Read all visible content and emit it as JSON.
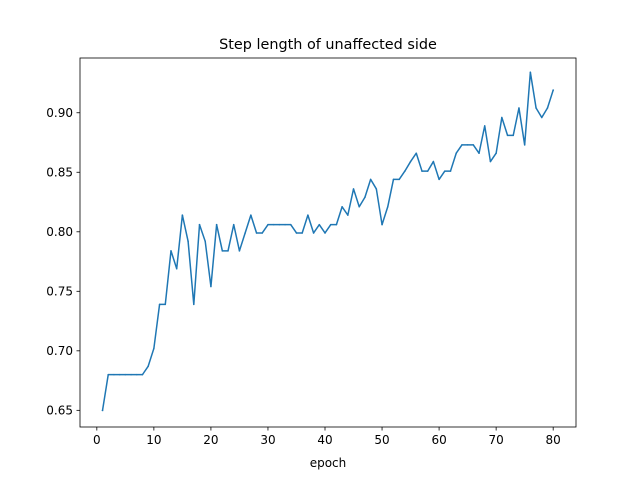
{
  "chart_data": {
    "type": "line",
    "title": "Step length of unaffected side",
    "xlabel": "epoch",
    "ylabel": "",
    "xlim": [
      -2.95,
      84.0
    ],
    "ylim": [
      0.636,
      0.946
    ],
    "grid": false,
    "legend": "none",
    "x_ticks": [
      0,
      10,
      20,
      30,
      40,
      50,
      60,
      70,
      80
    ],
    "x_tick_labels": [
      "0",
      "10",
      "20",
      "30",
      "40",
      "50",
      "60",
      "70",
      "80"
    ],
    "y_ticks": [
      0.65,
      0.7,
      0.75,
      0.8,
      0.85,
      0.9
    ],
    "y_tick_labels": [
      "0.65",
      "0.70",
      "0.75",
      "0.80",
      "0.85",
      "0.90"
    ],
    "series": [
      {
        "name": "",
        "color": "#1f77b4",
        "x": [
          1,
          2,
          3,
          4,
          5,
          6,
          7,
          8,
          9,
          10,
          11,
          12,
          13,
          14,
          15,
          16,
          17,
          18,
          19,
          20,
          21,
          22,
          23,
          24,
          25,
          26,
          27,
          28,
          29,
          30,
          31,
          32,
          33,
          34,
          35,
          36,
          37,
          38,
          39,
          40,
          41,
          42,
          43,
          44,
          45,
          46,
          47,
          48,
          49,
          50,
          51,
          52,
          53,
          54,
          55,
          56,
          57,
          58,
          59,
          60,
          61,
          62,
          63,
          64,
          65,
          66,
          67,
          68,
          69,
          70,
          71,
          72,
          73,
          74,
          75,
          76,
          77,
          78,
          79,
          80
        ],
        "values": [
          0.65,
          0.68,
          0.68,
          0.68,
          0.68,
          0.68,
          0.68,
          0.68,
          0.687,
          0.702,
          0.739,
          0.739,
          0.784,
          0.769,
          0.814,
          0.792,
          0.739,
          0.806,
          0.792,
          0.754,
          0.806,
          0.784,
          0.784,
          0.806,
          0.784,
          0.799,
          0.814,
          0.799,
          0.799,
          0.806,
          0.806,
          0.806,
          0.806,
          0.806,
          0.799,
          0.799,
          0.814,
          0.799,
          0.806,
          0.799,
          0.806,
          0.806,
          0.821,
          0.814,
          0.836,
          0.821,
          0.829,
          0.844,
          0.836,
          0.806,
          0.821,
          0.844,
          0.844,
          0.851,
          0.859,
          0.866,
          0.851,
          0.851,
          0.859,
          0.844,
          0.851,
          0.851,
          0.866,
          0.873,
          0.873,
          0.873,
          0.866,
          0.889,
          0.859,
          0.866,
          0.896,
          0.881,
          0.881,
          0.904,
          0.873,
          0.934,
          0.904,
          0.896,
          0.904,
          0.919
        ]
      }
    ]
  }
}
